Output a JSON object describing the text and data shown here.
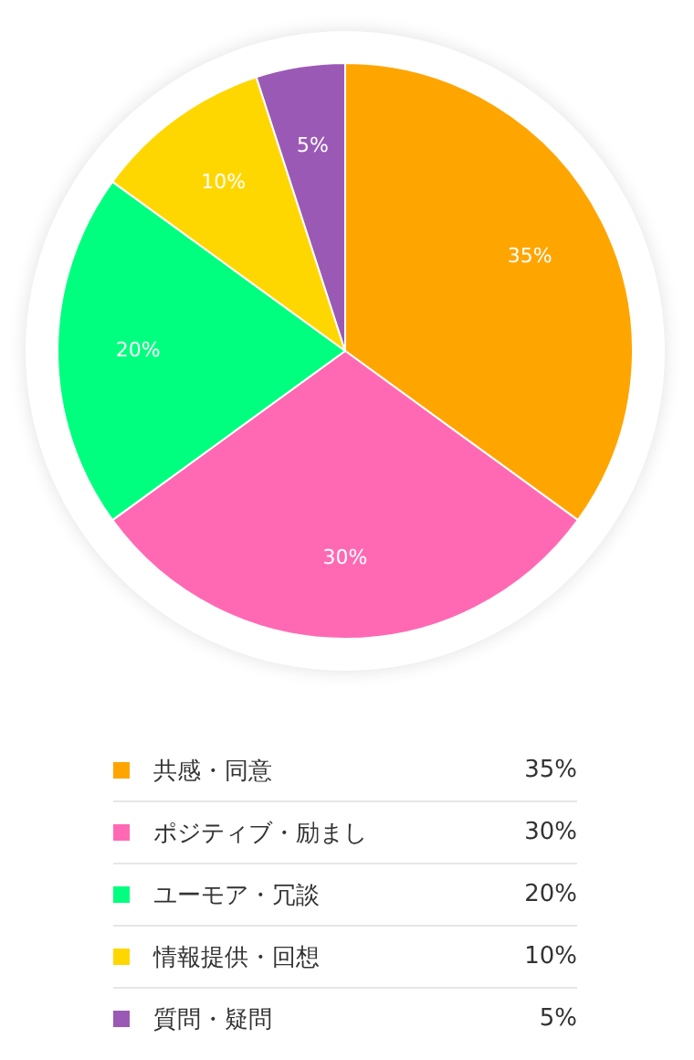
{
  "chart_data": {
    "type": "pie",
    "categories": [
      "共感・同意",
      "ポジティブ・励まし",
      "ユーモア・冗談",
      "情報提供・回想",
      "質問・疑問"
    ],
    "values": [
      35,
      30,
      20,
      10,
      5
    ],
    "colors": [
      "#ffa500",
      "#ff69b4",
      "#00ff7f",
      "#ffd700",
      "#9b59b6"
    ],
    "value_labels": [
      "35%",
      "30%",
      "20%",
      "10%",
      "5%"
    ],
    "legend": "bottom"
  }
}
